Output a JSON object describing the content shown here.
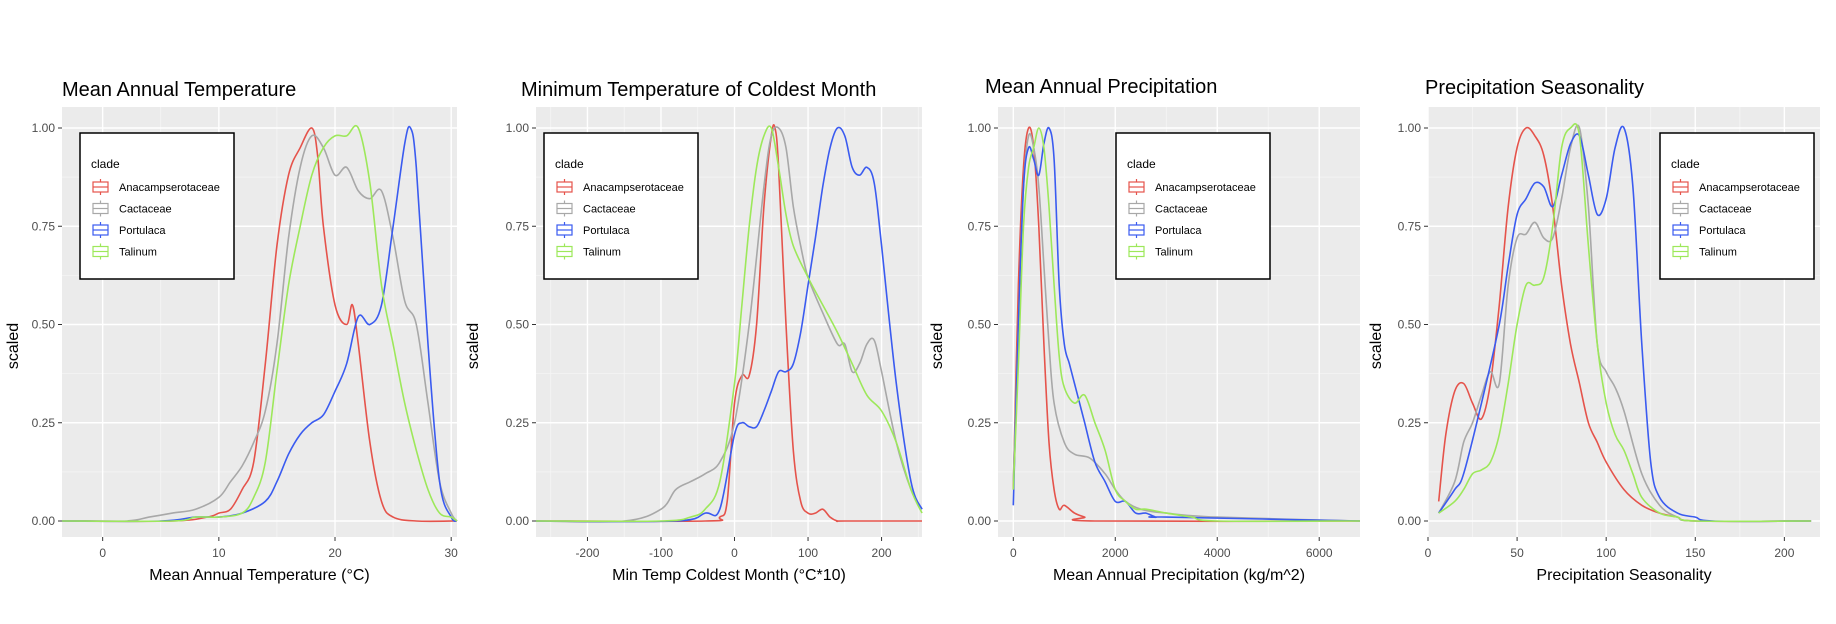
{
  "chart_data": [
    {
      "type": "line",
      "title": "Mean Annual Temperature",
      "xlabel": "Mean Annual Temperature (°C)",
      "ylabel": "scaled",
      "xlim": [
        -3.5,
        30.5
      ],
      "ylim": [
        0,
        1
      ],
      "xticks": [
        0,
        10,
        20,
        30
      ],
      "yticks": [
        0,
        0.25,
        0.5,
        0.75,
        1
      ],
      "ytick_labels": [
        "0.00",
        "0.25",
        "0.50",
        "0.75",
        "1.00"
      ],
      "legend": {
        "title": "clade",
        "position": "top-left"
      },
      "grid": true,
      "series": [
        {
          "name": "Anacampserotaceae",
          "color": "#e5534b",
          "x": [
            -3.5,
            6,
            9,
            10,
            11,
            12,
            13,
            14,
            15,
            16,
            17,
            18,
            18.5,
            19,
            20,
            21,
            21.5,
            22,
            23,
            24,
            25,
            27,
            30.5
          ],
          "y": [
            0,
            0,
            0.01,
            0.02,
            0.03,
            0.08,
            0.15,
            0.4,
            0.7,
            0.88,
            0.95,
            1.0,
            0.93,
            0.75,
            0.55,
            0.5,
            0.55,
            0.45,
            0.2,
            0.05,
            0.01,
            0,
            0
          ]
        },
        {
          "name": "Cactaceae",
          "color": "#a8a8a8",
          "x": [
            -3.5,
            2,
            4,
            6,
            8,
            10,
            11,
            12,
            13,
            14,
            15,
            16,
            17,
            18,
            19,
            20,
            21,
            22,
            23,
            24,
            25,
            26,
            27,
            28,
            29,
            30,
            30.5
          ],
          "y": [
            0,
            0,
            0.01,
            0.02,
            0.03,
            0.06,
            0.1,
            0.14,
            0.2,
            0.28,
            0.45,
            0.72,
            0.9,
            0.98,
            0.95,
            0.88,
            0.9,
            0.84,
            0.82,
            0.84,
            0.72,
            0.56,
            0.5,
            0.3,
            0.1,
            0.02,
            0
          ]
        },
        {
          "name": "Portulaca",
          "color": "#3a5bf0",
          "x": [
            -3.5,
            5,
            8,
            10,
            12,
            14,
            15,
            16,
            17,
            18,
            19,
            20,
            21,
            22,
            23,
            24,
            25,
            26,
            26.5,
            27,
            28,
            29,
            30,
            30.5
          ],
          "y": [
            0,
            0,
            0.01,
            0.01,
            0.02,
            0.05,
            0.1,
            0.17,
            0.22,
            0.25,
            0.27,
            0.33,
            0.4,
            0.52,
            0.5,
            0.55,
            0.75,
            0.96,
            1.0,
            0.9,
            0.45,
            0.1,
            0.01,
            0
          ]
        },
        {
          "name": "Talinum",
          "color": "#9de85a",
          "x": [
            -3.5,
            6,
            8,
            10,
            12,
            13,
            14,
            15,
            16,
            17,
            18,
            19,
            20,
            21,
            22,
            23,
            24,
            25,
            26,
            27,
            28,
            29,
            30,
            30.5
          ],
          "y": [
            0,
            0,
            0.01,
            0.01,
            0.02,
            0.06,
            0.15,
            0.38,
            0.6,
            0.75,
            0.88,
            0.95,
            0.98,
            0.98,
            1.0,
            0.86,
            0.6,
            0.45,
            0.3,
            0.18,
            0.08,
            0.02,
            0.01,
            0
          ]
        }
      ]
    },
    {
      "type": "line",
      "title": "Minimum Temperature of Coldest Month",
      "xlabel": "Min Temp Coldest Month (°C*10)",
      "ylabel": "scaled",
      "xlim": [
        -270,
        255
      ],
      "ylim": [
        0,
        1
      ],
      "xticks": [
        -200,
        -100,
        0,
        100,
        200
      ],
      "yticks": [
        0,
        0.25,
        0.5,
        0.75,
        1
      ],
      "ytick_labels": [
        "0.00",
        "0.25",
        "0.50",
        "0.75",
        "1.00"
      ],
      "legend": {
        "title": "clade",
        "position": "top-left"
      },
      "grid": true,
      "series": [
        {
          "name": "Anacampserotaceae",
          "color": "#e5534b",
          "x": [
            -270,
            -40,
            -20,
            -10,
            0,
            10,
            20,
            30,
            40,
            50,
            55,
            60,
            70,
            80,
            90,
            100,
            110,
            120,
            130,
            140,
            150,
            255
          ],
          "y": [
            0,
            0,
            0.01,
            0.05,
            0.3,
            0.37,
            0.37,
            0.5,
            0.8,
            0.98,
            1.0,
            0.9,
            0.5,
            0.18,
            0.05,
            0.02,
            0.02,
            0.03,
            0.01,
            0,
            0,
            0
          ]
        },
        {
          "name": "Cactaceae",
          "color": "#a8a8a8",
          "x": [
            -270,
            -150,
            -100,
            -80,
            -60,
            -40,
            -20,
            0,
            20,
            40,
            50,
            60,
            70,
            80,
            90,
            100,
            120,
            140,
            150,
            160,
            170,
            180,
            190,
            200,
            220,
            240,
            255
          ],
          "y": [
            0,
            0,
            0.03,
            0.08,
            0.1,
            0.12,
            0.15,
            0.25,
            0.5,
            0.85,
            0.98,
            1.0,
            0.95,
            0.8,
            0.7,
            0.62,
            0.53,
            0.45,
            0.45,
            0.38,
            0.4,
            0.45,
            0.46,
            0.38,
            0.2,
            0.08,
            0.03
          ]
        },
        {
          "name": "Portulaca",
          "color": "#3a5bf0",
          "x": [
            -270,
            -80,
            -40,
            -20,
            0,
            10,
            20,
            30,
            40,
            50,
            60,
            70,
            80,
            90,
            100,
            110,
            120,
            130,
            140,
            150,
            160,
            170,
            180,
            190,
            200,
            220,
            240,
            255
          ],
          "y": [
            0,
            0,
            0.02,
            0.03,
            0.22,
            0.25,
            0.24,
            0.24,
            0.28,
            0.33,
            0.38,
            0.38,
            0.4,
            0.48,
            0.6,
            0.72,
            0.85,
            0.95,
            1.0,
            0.98,
            0.9,
            0.88,
            0.9,
            0.86,
            0.7,
            0.35,
            0.1,
            0.03
          ]
        },
        {
          "name": "Talinum",
          "color": "#9de85a",
          "x": [
            -270,
            -100,
            -60,
            -40,
            -20,
            0,
            10,
            20,
            30,
            40,
            50,
            60,
            70,
            80,
            100,
            120,
            140,
            160,
            180,
            200,
            220,
            240,
            255
          ],
          "y": [
            0,
            0,
            0.01,
            0.03,
            0.1,
            0.35,
            0.55,
            0.75,
            0.9,
            0.98,
            1.0,
            0.9,
            0.78,
            0.7,
            0.62,
            0.55,
            0.48,
            0.4,
            0.32,
            0.28,
            0.2,
            0.08,
            0.02
          ]
        }
      ]
    },
    {
      "type": "line",
      "title": "Mean Annual Precipitation",
      "xlabel": "Mean Annual Precipitation (kg/m^2)",
      "ylabel": "scaled",
      "xlim": [
        -300,
        6800
      ],
      "ylim": [
        0,
        1
      ],
      "xticks": [
        0,
        2000,
        4000,
        6000
      ],
      "yticks": [
        0,
        0.25,
        0.5,
        0.75,
        1
      ],
      "ytick_labels": [
        "0.00",
        "0.25",
        "0.50",
        "0.75",
        "1.00"
      ],
      "legend": {
        "title": "clade",
        "position": "top-right"
      },
      "grid": true,
      "series": [
        {
          "name": "Anacampserotaceae",
          "color": "#e5534b",
          "x": [
            0,
            100,
            200,
            300,
            400,
            500,
            600,
            700,
            800,
            900,
            1000,
            1200,
            1400,
            1600,
            6800
          ],
          "y": [
            0.08,
            0.6,
            0.9,
            1.0,
            0.95,
            0.75,
            0.45,
            0.2,
            0.08,
            0.03,
            0.04,
            0.02,
            0.01,
            0,
            0
          ]
        },
        {
          "name": "Cactaceae",
          "color": "#a8a8a8",
          "x": [
            0,
            100,
            200,
            300,
            400,
            500,
            600,
            700,
            800,
            1000,
            1200,
            1500,
            1800,
            2000,
            2200,
            2500,
            3000,
            4000,
            6800
          ],
          "y": [
            0.1,
            0.5,
            0.85,
            0.98,
            0.95,
            0.85,
            0.65,
            0.45,
            0.3,
            0.2,
            0.17,
            0.16,
            0.12,
            0.08,
            0.05,
            0.03,
            0.02,
            0.01,
            0
          ]
        },
        {
          "name": "Portulaca",
          "color": "#3a5bf0",
          "x": [
            0,
            100,
            200,
            300,
            400,
            500,
            600,
            700,
            800,
            900,
            1000,
            1100,
            1200,
            1300,
            1400,
            1600,
            1800,
            2000,
            2200,
            2400,
            2600,
            2800,
            3000,
            6800
          ],
          "y": [
            0.04,
            0.5,
            0.85,
            0.95,
            0.92,
            0.88,
            0.96,
            1.0,
            0.92,
            0.6,
            0.45,
            0.4,
            0.35,
            0.3,
            0.25,
            0.15,
            0.1,
            0.05,
            0.05,
            0.02,
            0.02,
            0.01,
            0.01,
            0
          ]
        },
        {
          "name": "Talinum",
          "color": "#9de85a",
          "x": [
            0,
            100,
            200,
            300,
            400,
            500,
            600,
            700,
            800,
            900,
            1000,
            1200,
            1400,
            1600,
            1800,
            2000,
            2200,
            2400,
            2600,
            3000,
            3500,
            4000,
            6800
          ],
          "y": [
            0.08,
            0.4,
            0.75,
            0.9,
            0.95,
            1.0,
            0.95,
            0.8,
            0.6,
            0.42,
            0.34,
            0.3,
            0.32,
            0.25,
            0.18,
            0.08,
            0.05,
            0.03,
            0.03,
            0.02,
            0.01,
            0,
            0
          ]
        }
      ]
    },
    {
      "type": "line",
      "title": "Precipitation Seasonality",
      "xlabel": "Precipitation Seasonality",
      "ylabel": "scaled",
      "xlim": [
        0,
        220
      ],
      "ylim": [
        0,
        1
      ],
      "xticks": [
        0,
        50,
        100,
        150,
        200
      ],
      "yticks": [
        0,
        0.25,
        0.5,
        0.75,
        1
      ],
      "ytick_labels": [
        "0.00",
        "0.25",
        "0.50",
        "0.75",
        "1.00"
      ],
      "legend": {
        "title": "clade",
        "position": "top-right"
      },
      "grid": true,
      "series": [
        {
          "name": "Anacampserotaceae",
          "color": "#e5534b",
          "x": [
            6,
            10,
            15,
            20,
            25,
            30,
            35,
            40,
            45,
            50,
            55,
            60,
            65,
            70,
            75,
            80,
            85,
            90,
            95,
            100,
            110,
            120,
            130,
            140,
            150,
            215
          ],
          "y": [
            0.05,
            0.22,
            0.33,
            0.35,
            0.3,
            0.26,
            0.35,
            0.55,
            0.8,
            0.95,
            1.0,
            0.98,
            0.93,
            0.8,
            0.6,
            0.45,
            0.35,
            0.25,
            0.2,
            0.15,
            0.08,
            0.04,
            0.02,
            0.01,
            0,
            0
          ]
        },
        {
          "name": "Cactaceae",
          "color": "#a8a8a8",
          "x": [
            6,
            15,
            20,
            25,
            30,
            35,
            40,
            45,
            50,
            55,
            60,
            65,
            70,
            75,
            80,
            85,
            90,
            95,
            100,
            105,
            110,
            120,
            130,
            140,
            150,
            215
          ],
          "y": [
            0.02,
            0.1,
            0.2,
            0.25,
            0.32,
            0.38,
            0.35,
            0.6,
            0.72,
            0.73,
            0.76,
            0.72,
            0.72,
            0.82,
            0.95,
            1.0,
            0.8,
            0.45,
            0.38,
            0.34,
            0.28,
            0.12,
            0.04,
            0.01,
            0,
            0
          ]
        },
        {
          "name": "Portulaca",
          "color": "#3a5bf0",
          "x": [
            6,
            15,
            20,
            30,
            40,
            45,
            50,
            55,
            60,
            65,
            70,
            75,
            80,
            85,
            90,
            95,
            100,
            105,
            110,
            115,
            120,
            125,
            130,
            140,
            150,
            160,
            215
          ],
          "y": [
            0.02,
            0.08,
            0.12,
            0.3,
            0.5,
            0.65,
            0.78,
            0.82,
            0.86,
            0.85,
            0.8,
            0.88,
            0.96,
            0.98,
            0.88,
            0.78,
            0.82,
            0.95,
            1.0,
            0.85,
            0.45,
            0.15,
            0.06,
            0.02,
            0.01,
            0,
            0
          ]
        },
        {
          "name": "Talinum",
          "color": "#9de85a",
          "x": [
            6,
            15,
            20,
            25,
            30,
            35,
            40,
            45,
            50,
            55,
            60,
            65,
            70,
            75,
            80,
            85,
            90,
            95,
            100,
            105,
            110,
            115,
            120,
            130,
            140,
            150,
            215
          ],
          "y": [
            0.02,
            0.05,
            0.08,
            0.12,
            0.13,
            0.15,
            0.22,
            0.35,
            0.5,
            0.6,
            0.6,
            0.62,
            0.75,
            0.95,
            1.0,
            0.98,
            0.7,
            0.45,
            0.3,
            0.22,
            0.18,
            0.12,
            0.06,
            0.02,
            0.01,
            0,
            0
          ]
        }
      ]
    }
  ],
  "style": {
    "panel_background": "#ebebeb",
    "grid_major": "#ffffff",
    "text_color": "#000000",
    "tick_color": "#4d4d4d"
  }
}
